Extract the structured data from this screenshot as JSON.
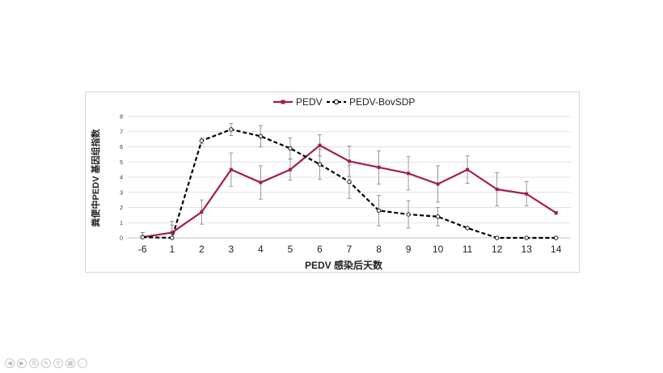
{
  "chart_data": {
    "type": "line",
    "categories": [
      "-6",
      "1",
      "2",
      "3",
      "4",
      "5",
      "6",
      "7",
      "8",
      "9",
      "10",
      "11",
      "12",
      "13",
      "14"
    ],
    "series": [
      {
        "name": "PEDV",
        "color": "#a31d4f",
        "style": "solid",
        "marker": "filled-square",
        "values": [
          0.05,
          0.35,
          1.7,
          4.5,
          3.65,
          4.5,
          6.1,
          5.05,
          4.65,
          4.25,
          3.55,
          4.5,
          3.2,
          2.9,
          1.65
        ],
        "error": [
          0.3,
          0.5,
          0.8,
          1.1,
          1.1,
          0.7,
          0.7,
          1.0,
          1.1,
          1.1,
          1.2,
          0.9,
          1.1,
          0.8,
          0.1
        ]
      },
      {
        "name": "PEDV-BovSDP",
        "color": "#000000",
        "style": "dashed",
        "marker": "hollow-circle",
        "values": [
          0.05,
          0.0,
          6.4,
          7.15,
          6.7,
          5.9,
          4.85,
          3.7,
          1.8,
          1.55,
          1.4,
          0.65,
          0.0,
          0.0,
          0.0
        ],
        "error": [
          0.3,
          1.1,
          0.2,
          0.4,
          0.7,
          0.7,
          1.0,
          1.1,
          1.0,
          0.9,
          0.6,
          0.0,
          0.0,
          0.0,
          0.0
        ]
      }
    ],
    "xlabel": "PEDV 感染后天数",
    "ylabel": "粪便中PEDV 基因组指数",
    "ylim": [
      0,
      8
    ],
    "yticks": [
      "0",
      "1",
      "2",
      "3",
      "4",
      "5",
      "6",
      "7",
      "8"
    ],
    "grid": true,
    "legend_position": "top-center"
  },
  "controls": {
    "icons": [
      "previous-icon",
      "next-icon",
      "menu-icon",
      "pen-icon",
      "zoom-icon",
      "slides-icon",
      "more-icon"
    ]
  }
}
